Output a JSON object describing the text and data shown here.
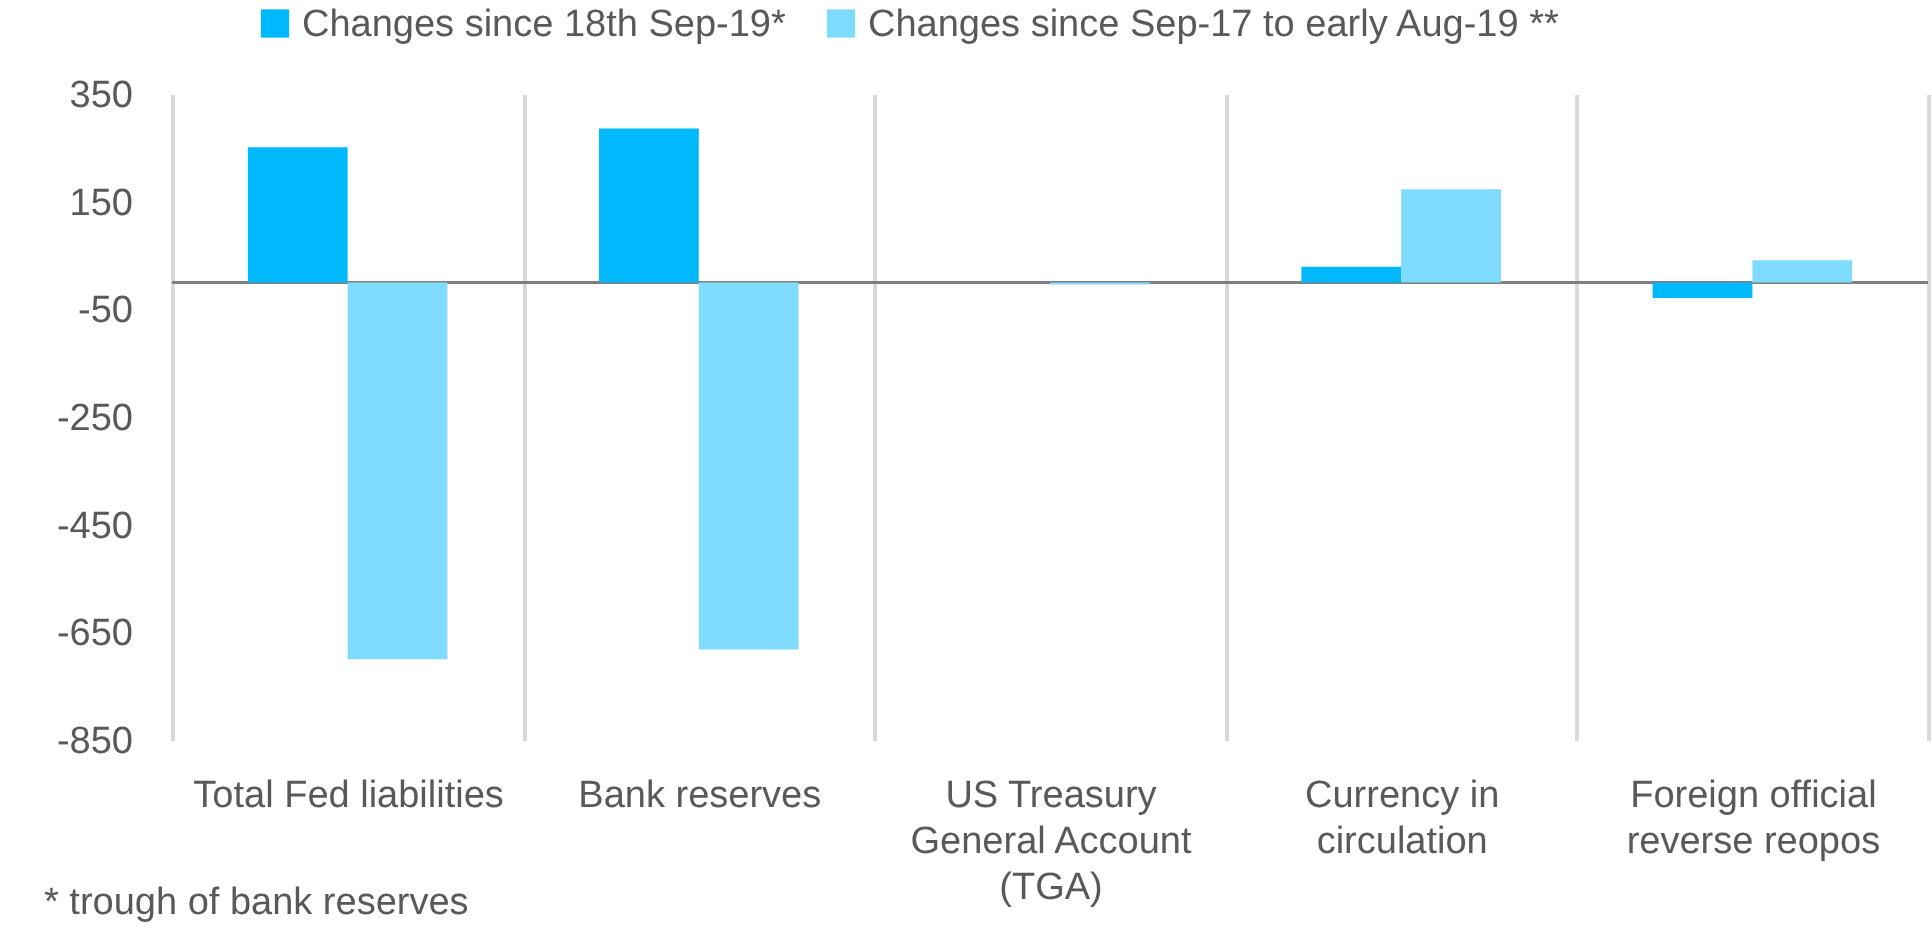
{
  "chart_data": {
    "type": "bar",
    "categories": [
      "Total Fed liabilities",
      "Bank reserves",
      "US Treasury\nGeneral Account\n(TGA)",
      "Currency in\ncirculation",
      "Foreign official\nreverse reopos"
    ],
    "series": [
      {
        "name": "Changes since 18th Sep-19*",
        "color": "#00b8fc",
        "values": [
          251,
          286,
          0,
          29,
          -29
        ]
      },
      {
        "name": "Changes since Sep-17 to early Aug-19 **",
        "color": "#80dcfe",
        "values": [
          -700,
          -682,
          -4,
          173,
          41
        ]
      }
    ],
    "ylim": [
      -850,
      350
    ],
    "yticks": [
      -850,
      -650,
      -450,
      -250,
      -50,
      150,
      350
    ],
    "grid": "x",
    "legend": "top left",
    "annotations": [
      "* trough of bank reserves"
    ]
  }
}
